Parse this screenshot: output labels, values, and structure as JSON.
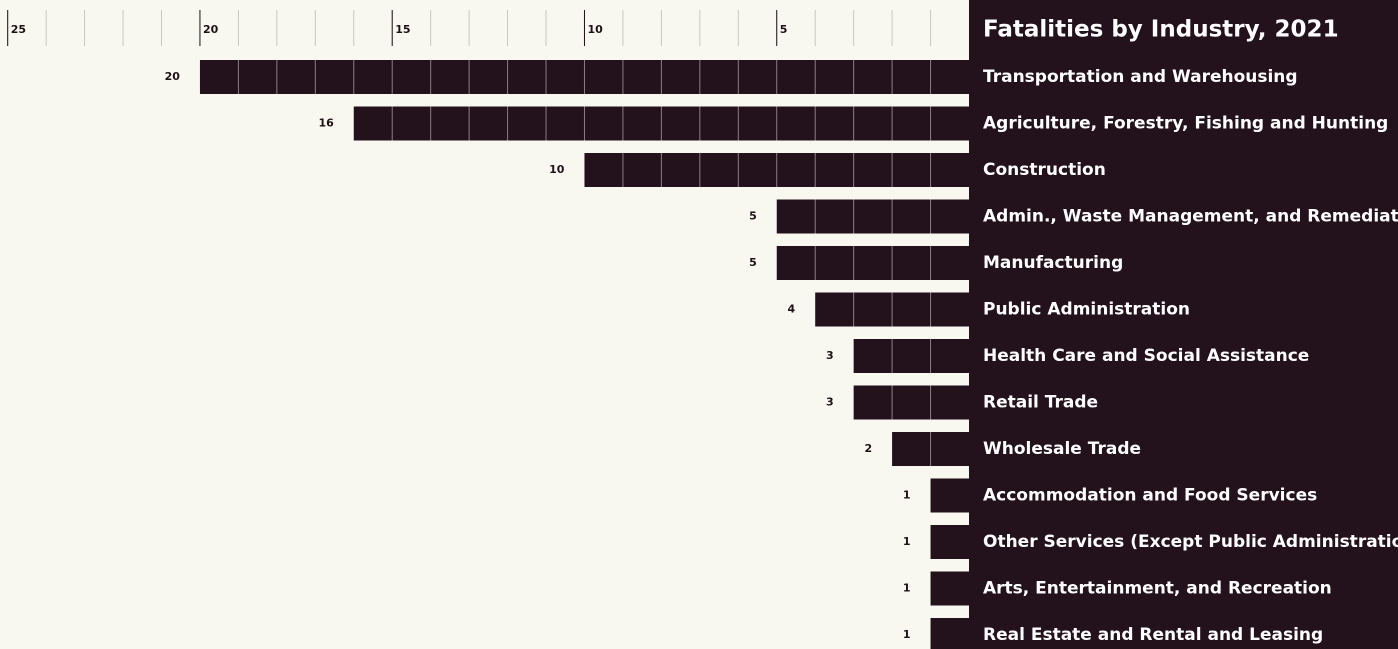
{
  "chart_data": {
    "type": "bar",
    "orientation": "horizontal",
    "title": "Fatalities by Industry, 2021",
    "categories": [
      "Transportation and Warehousing",
      "Agriculture, Forestry, Fishing and Hunting",
      "Construction",
      "Admin., Waste Management, and Remediation",
      "Manufacturing",
      "Public Administration",
      "Health Care and Social Assistance",
      "Retail Trade",
      "Wholesale Trade",
      "Accommodation and Food Services",
      "Other Services (Except Public Administration)",
      "Arts, Entertainment, and Recreation",
      "Real Estate and Rental and Leasing"
    ],
    "values": [
      20,
      16,
      10,
      5,
      5,
      4,
      3,
      3,
      2,
      1,
      1,
      1,
      1
    ],
    "color": "#23111b",
    "xlim": [
      0,
      25.2
    ],
    "xticks": [
      5,
      10,
      15,
      20,
      25
    ],
    "grid": true
  }
}
